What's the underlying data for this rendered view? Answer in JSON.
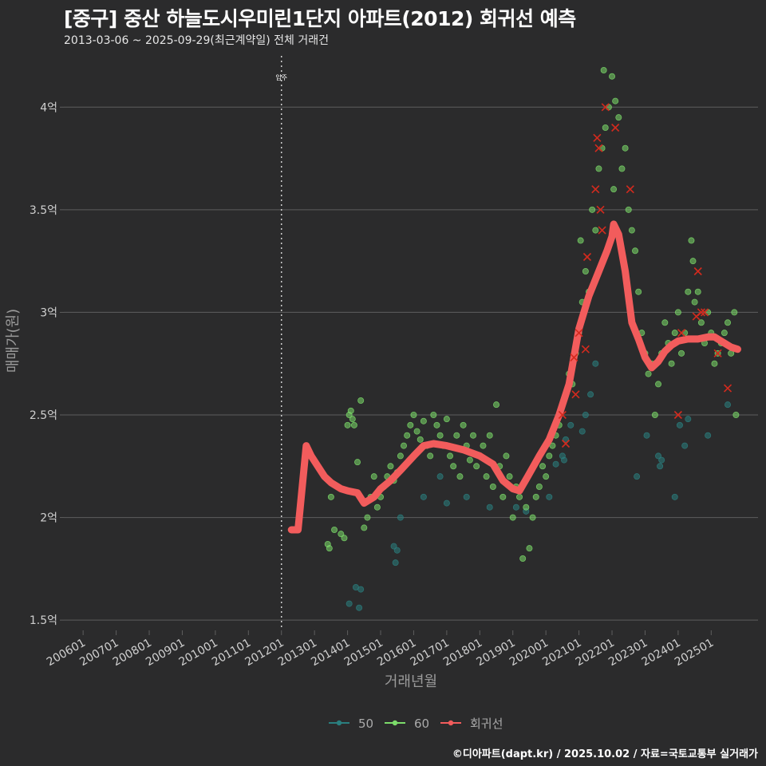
{
  "header": {
    "title": "[중구] 중산 하늘도시우미린1단지 아파트(2012) 회귀선 예측",
    "subtitle": "2013-03-06 ~ 2025-09-29(최근계약일) 전체 거래건"
  },
  "footer": {
    "credit": "©디아파트(dapt.kr) / 2025.10.02 / 자료=국토교통부 실거래가"
  },
  "colors": {
    "background": "#2b2b2c",
    "grid": "#5e5e5e",
    "series_50": "#2a7f7f",
    "series_60": "#7cdc6a",
    "regression": "#f25c5c",
    "highlight_x": "#d42a1e"
  },
  "chart_data": {
    "type": "scatter",
    "xlabel": "거래년월",
    "ylabel": "매매가(원)",
    "x_ticks": [
      "200601",
      "200701",
      "200801",
      "200901",
      "201001",
      "201101",
      "201201",
      "201301",
      "201401",
      "201501",
      "201601",
      "201701",
      "201801",
      "201901",
      "202001",
      "202101",
      "202201",
      "202301",
      "202401",
      "202501"
    ],
    "y_ticks": [
      "1.5억",
      "2억",
      "2.5억",
      "3억",
      "3.5억",
      "4억"
    ],
    "y_tick_values": [
      1.5,
      2.0,
      2.5,
      3.0,
      3.5,
      4.0
    ],
    "ylim": [
      1.45,
      4.25
    ],
    "xlim": [
      "2005-06",
      "2026-06"
    ],
    "grid": true,
    "legend_position": "bottom",
    "annotation": {
      "x": "2012-01",
      "label": "입주"
    },
    "series": [
      {
        "name": "50",
        "color": "#2a7f7f",
        "points": [
          [
            2014.05,
            1.58
          ],
          [
            2014.25,
            1.66
          ],
          [
            2014.35,
            1.56
          ],
          [
            2014.4,
            1.65
          ],
          [
            2015.4,
            1.86
          ],
          [
            2015.45,
            1.78
          ],
          [
            2015.5,
            1.84
          ],
          [
            2015.6,
            2.0
          ],
          [
            2016.3,
            2.1
          ],
          [
            2016.8,
            2.2
          ],
          [
            2017.0,
            2.07
          ],
          [
            2017.6,
            2.1
          ],
          [
            2018.3,
            2.05
          ],
          [
            2019.1,
            2.05
          ],
          [
            2019.4,
            2.03
          ],
          [
            2020.1,
            2.1
          ],
          [
            2020.3,
            2.26
          ],
          [
            2020.5,
            2.3
          ],
          [
            2020.55,
            2.28
          ],
          [
            2020.6,
            2.38
          ],
          [
            2020.75,
            2.45
          ],
          [
            2021.1,
            2.42
          ],
          [
            2021.2,
            2.5
          ],
          [
            2021.35,
            2.6
          ],
          [
            2021.5,
            2.75
          ],
          [
            2022.75,
            2.2
          ],
          [
            2023.05,
            2.4
          ],
          [
            2023.4,
            2.3
          ],
          [
            2023.5,
            2.28
          ],
          [
            2023.45,
            2.25
          ],
          [
            2023.9,
            2.1
          ],
          [
            2024.05,
            2.45
          ],
          [
            2024.2,
            2.35
          ],
          [
            2024.3,
            2.48
          ],
          [
            2024.9,
            2.4
          ],
          [
            2025.5,
            2.55
          ]
        ]
      },
      {
        "name": "60",
        "color": "#7cdc6a",
        "points": [
          [
            2013.4,
            1.87
          ],
          [
            2013.45,
            1.85
          ],
          [
            2013.5,
            2.1
          ],
          [
            2013.6,
            1.94
          ],
          [
            2013.8,
            1.92
          ],
          [
            2013.9,
            1.9
          ],
          [
            2014.0,
            2.45
          ],
          [
            2014.05,
            2.5
          ],
          [
            2014.1,
            2.52
          ],
          [
            2014.15,
            2.48
          ],
          [
            2014.2,
            2.45
          ],
          [
            2014.3,
            2.27
          ],
          [
            2014.4,
            2.57
          ],
          [
            2014.5,
            1.95
          ],
          [
            2014.6,
            2.0
          ],
          [
            2014.7,
            2.1
          ],
          [
            2014.8,
            2.2
          ],
          [
            2014.9,
            2.05
          ],
          [
            2015.0,
            2.1
          ],
          [
            2015.1,
            2.15
          ],
          [
            2015.2,
            2.2
          ],
          [
            2015.3,
            2.25
          ],
          [
            2015.4,
            2.18
          ],
          [
            2015.5,
            2.22
          ],
          [
            2015.6,
            2.3
          ],
          [
            2015.7,
            2.35
          ],
          [
            2015.8,
            2.4
          ],
          [
            2015.9,
            2.45
          ],
          [
            2016.0,
            2.5
          ],
          [
            2016.1,
            2.42
          ],
          [
            2016.2,
            2.38
          ],
          [
            2016.3,
            2.47
          ],
          [
            2016.4,
            2.35
          ],
          [
            2016.5,
            2.3
          ],
          [
            2016.6,
            2.5
          ],
          [
            2016.7,
            2.45
          ],
          [
            2016.8,
            2.4
          ],
          [
            2016.9,
            2.35
          ],
          [
            2017.0,
            2.48
          ],
          [
            2017.1,
            2.3
          ],
          [
            2017.2,
            2.25
          ],
          [
            2017.3,
            2.4
          ],
          [
            2017.4,
            2.2
          ],
          [
            2017.5,
            2.45
          ],
          [
            2017.6,
            2.35
          ],
          [
            2017.7,
            2.28
          ],
          [
            2017.8,
            2.4
          ],
          [
            2017.9,
            2.25
          ],
          [
            2018.0,
            2.3
          ],
          [
            2018.1,
            2.35
          ],
          [
            2018.2,
            2.2
          ],
          [
            2018.3,
            2.4
          ],
          [
            2018.4,
            2.15
          ],
          [
            2018.5,
            2.55
          ],
          [
            2018.6,
            2.25
          ],
          [
            2018.7,
            2.1
          ],
          [
            2018.8,
            2.3
          ],
          [
            2018.9,
            2.2
          ],
          [
            2019.0,
            2.0
          ],
          [
            2019.1,
            2.15
          ],
          [
            2019.2,
            2.1
          ],
          [
            2019.3,
            1.8
          ],
          [
            2019.4,
            2.05
          ],
          [
            2019.5,
            1.85
          ],
          [
            2019.6,
            2.0
          ],
          [
            2019.7,
            2.1
          ],
          [
            2019.8,
            2.15
          ],
          [
            2019.9,
            2.25
          ],
          [
            2020.0,
            2.2
          ],
          [
            2020.1,
            2.3
          ],
          [
            2020.2,
            2.35
          ],
          [
            2020.3,
            2.4
          ],
          [
            2020.4,
            2.45
          ],
          [
            2020.5,
            2.55
          ],
          [
            2020.6,
            2.6
          ],
          [
            2020.7,
            2.7
          ],
          [
            2020.8,
            2.65
          ],
          [
            2020.9,
            2.8
          ],
          [
            2021.0,
            2.9
          ],
          [
            2021.05,
            3.35
          ],
          [
            2021.1,
            3.05
          ],
          [
            2021.2,
            3.2
          ],
          [
            2021.3,
            3.1
          ],
          [
            2021.4,
            3.5
          ],
          [
            2021.5,
            3.4
          ],
          [
            2021.6,
            3.7
          ],
          [
            2021.7,
            3.8
          ],
          [
            2021.75,
            4.18
          ],
          [
            2021.8,
            3.9
          ],
          [
            2021.9,
            4.0
          ],
          [
            2022.0,
            4.15
          ],
          [
            2022.05,
            3.6
          ],
          [
            2022.1,
            4.03
          ],
          [
            2022.2,
            3.95
          ],
          [
            2022.3,
            3.7
          ],
          [
            2022.4,
            3.8
          ],
          [
            2022.5,
            3.5
          ],
          [
            2022.6,
            3.4
          ],
          [
            2022.7,
            3.3
          ],
          [
            2022.8,
            3.1
          ],
          [
            2022.9,
            2.9
          ],
          [
            2023.0,
            2.8
          ],
          [
            2023.1,
            2.7
          ],
          [
            2023.2,
            2.75
          ],
          [
            2023.3,
            2.5
          ],
          [
            2023.4,
            2.65
          ],
          [
            2023.5,
            2.8
          ],
          [
            2023.6,
            2.95
          ],
          [
            2023.7,
            2.85
          ],
          [
            2023.8,
            2.75
          ],
          [
            2023.9,
            2.9
          ],
          [
            2024.0,
            3.0
          ],
          [
            2024.1,
            2.8
          ],
          [
            2024.2,
            2.9
          ],
          [
            2024.3,
            3.1
          ],
          [
            2024.4,
            3.35
          ],
          [
            2024.45,
            3.25
          ],
          [
            2024.5,
            3.05
          ],
          [
            2024.6,
            3.1
          ],
          [
            2024.7,
            2.95
          ],
          [
            2024.8,
            2.85
          ],
          [
            2024.9,
            3.0
          ],
          [
            2025.0,
            2.9
          ],
          [
            2025.1,
            2.75
          ],
          [
            2025.2,
            2.8
          ],
          [
            2025.3,
            2.85
          ],
          [
            2025.4,
            2.9
          ],
          [
            2025.5,
            2.95
          ],
          [
            2025.6,
            2.8
          ],
          [
            2025.7,
            3.0
          ],
          [
            2025.75,
            2.5
          ]
        ]
      },
      {
        "name": "회귀선",
        "color": "#f25c5c",
        "points": [
          [
            2012.3,
            1.94
          ],
          [
            2012.5,
            1.94
          ],
          [
            2012.75,
            2.35
          ],
          [
            2012.9,
            2.3
          ],
          [
            2013.1,
            2.25
          ],
          [
            2013.3,
            2.2
          ],
          [
            2013.5,
            2.17
          ],
          [
            2013.8,
            2.14
          ],
          [
            2014.0,
            2.13
          ],
          [
            2014.3,
            2.12
          ],
          [
            2014.5,
            2.07
          ],
          [
            2014.8,
            2.1
          ],
          [
            2015.0,
            2.14
          ],
          [
            2015.3,
            2.18
          ],
          [
            2015.6,
            2.23
          ],
          [
            2016.0,
            2.3
          ],
          [
            2016.3,
            2.35
          ],
          [
            2016.6,
            2.36
          ],
          [
            2017.0,
            2.35
          ],
          [
            2017.5,
            2.33
          ],
          [
            2018.0,
            2.3
          ],
          [
            2018.4,
            2.26
          ],
          [
            2018.7,
            2.18
          ],
          [
            2019.0,
            2.14
          ],
          [
            2019.2,
            2.13
          ],
          [
            2019.45,
            2.2
          ],
          [
            2019.8,
            2.3
          ],
          [
            2020.1,
            2.38
          ],
          [
            2020.4,
            2.5
          ],
          [
            2020.7,
            2.65
          ],
          [
            2021.0,
            2.92
          ],
          [
            2021.3,
            3.08
          ],
          [
            2021.6,
            3.2
          ],
          [
            2021.85,
            3.3
          ],
          [
            2022.0,
            3.37
          ],
          [
            2022.05,
            3.43
          ],
          [
            2022.2,
            3.38
          ],
          [
            2022.4,
            3.2
          ],
          [
            2022.6,
            2.95
          ],
          [
            2022.8,
            2.87
          ],
          [
            2023.0,
            2.78
          ],
          [
            2023.2,
            2.73
          ],
          [
            2023.4,
            2.76
          ],
          [
            2023.6,
            2.81
          ],
          [
            2023.8,
            2.84
          ],
          [
            2024.0,
            2.86
          ],
          [
            2024.3,
            2.87
          ],
          [
            2024.6,
            2.87
          ],
          [
            2024.9,
            2.88
          ],
          [
            2025.1,
            2.88
          ],
          [
            2025.3,
            2.86
          ],
          [
            2025.6,
            2.83
          ],
          [
            2025.8,
            2.82
          ]
        ]
      }
    ],
    "highlights": [
      [
        2020.5,
        2.5
      ],
      [
        2020.6,
        2.36
      ],
      [
        2020.85,
        2.78
      ],
      [
        2020.9,
        2.6
      ],
      [
        2021.0,
        2.9
      ],
      [
        2021.2,
        2.82
      ],
      [
        2021.25,
        3.27
      ],
      [
        2021.5,
        3.6
      ],
      [
        2021.55,
        3.85
      ],
      [
        2021.6,
        3.8
      ],
      [
        2021.65,
        3.5
      ],
      [
        2021.7,
        3.4
      ],
      [
        2021.8,
        4.0
      ],
      [
        2022.1,
        3.9
      ],
      [
        2022.55,
        3.6
      ],
      [
        2024.0,
        2.5
      ],
      [
        2024.1,
        2.9
      ],
      [
        2024.55,
        2.98
      ],
      [
        2024.6,
        3.2
      ],
      [
        2024.7,
        3.0
      ],
      [
        2024.8,
        3.0
      ],
      [
        2025.2,
        2.8
      ],
      [
        2025.5,
        2.63
      ]
    ]
  }
}
